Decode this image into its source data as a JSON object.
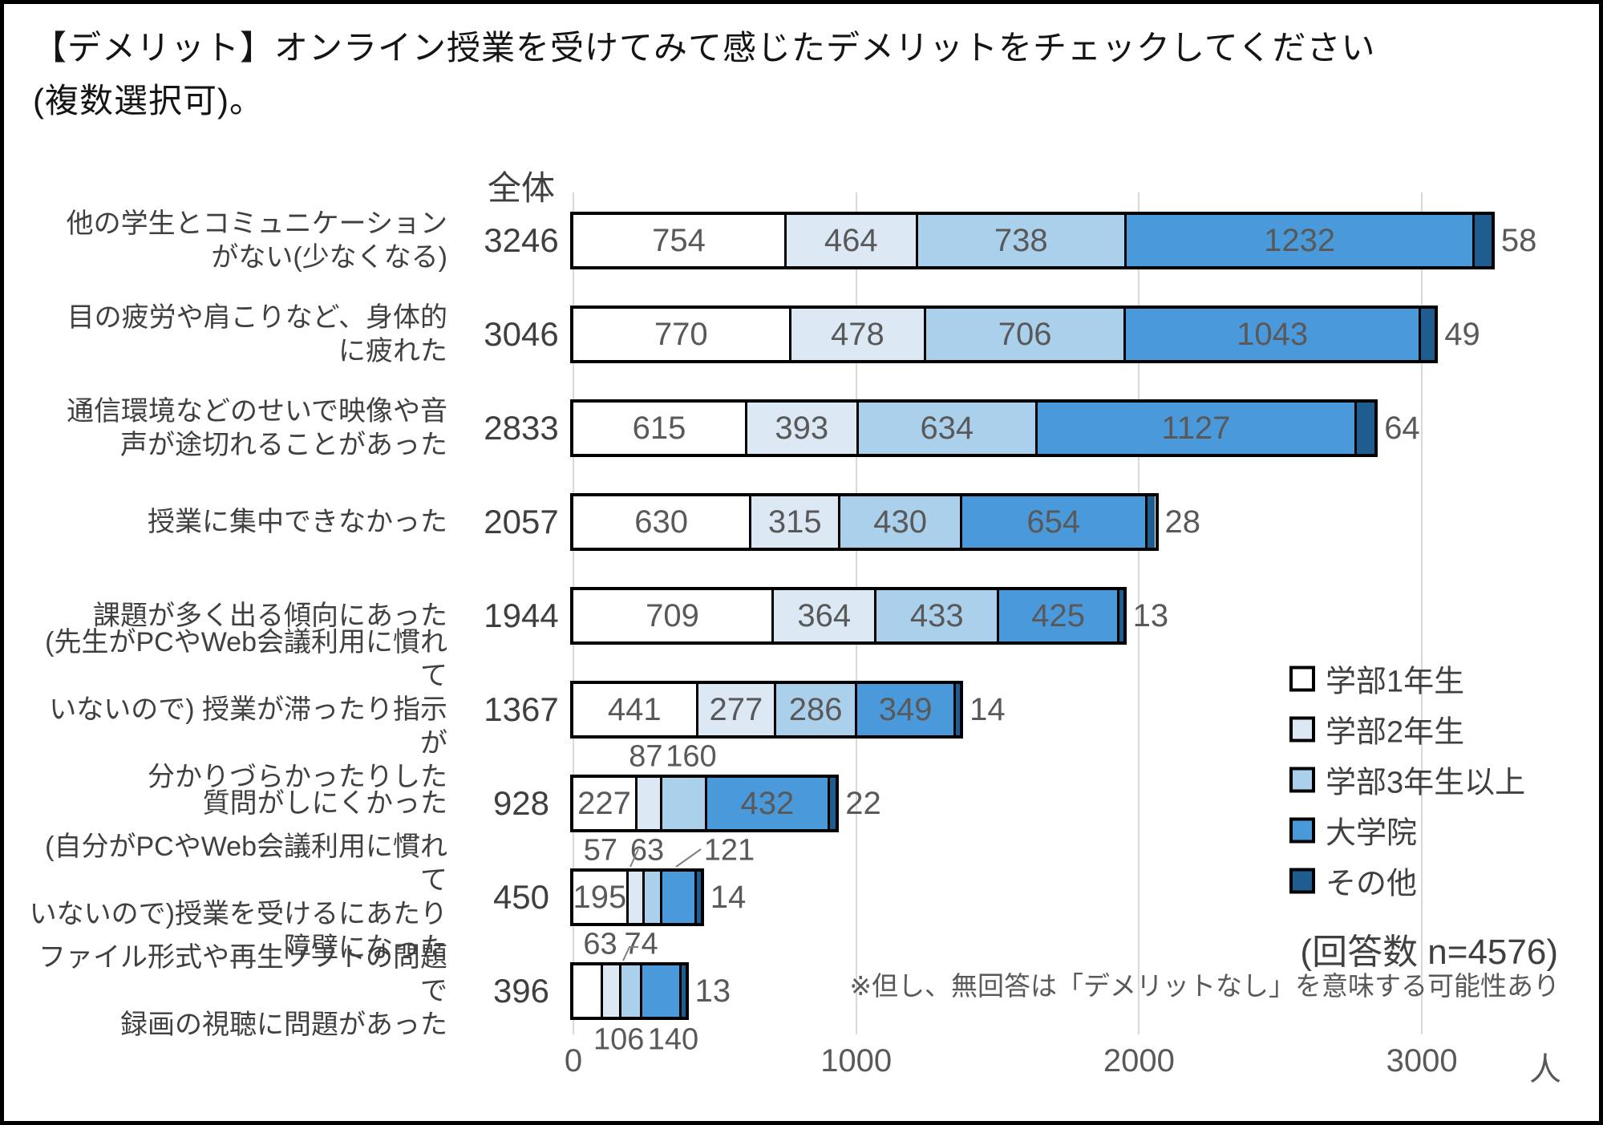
{
  "title": {
    "line1": "【デメリット】オンライン授業を受けてみて感じたデメリットをチェックしてください",
    "line2": "(複数選択可)。"
  },
  "chart_data": {
    "type": "bar",
    "stacked": true,
    "orientation": "horizontal",
    "grid": true,
    "legend_position": "right",
    "total_header": "全体",
    "unit": "人",
    "x_tick_labels": [
      "0",
      "1000",
      "2000",
      "3000"
    ],
    "x_tick_values": [
      0,
      1000,
      2000,
      3000
    ],
    "xlim": [
      0,
      3320
    ],
    "series_names": [
      "学部1年生",
      "学部2年生",
      "学部3年生以上",
      "大学院",
      "その他"
    ],
    "series_colors": [
      "#ffffff",
      "#dce9f5",
      "#abd0ec",
      "#4a99db",
      "#1f5c8f"
    ],
    "rows": [
      {
        "label_lines": [
          "他の学生とコミュニケーション",
          "がない(少なくなる)"
        ],
        "total": 3246,
        "values": [
          754,
          464,
          738,
          1232,
          58
        ]
      },
      {
        "label_lines": [
          "目の疲労や肩こりなど、身体的",
          "に疲れた"
        ],
        "total": 3046,
        "values": [
          770,
          478,
          706,
          1043,
          49
        ]
      },
      {
        "label_lines": [
          "通信環境などのせいで映像や音",
          "声が途切れることがあった"
        ],
        "total": 2833,
        "values": [
          615,
          393,
          634,
          1127,
          64
        ]
      },
      {
        "label_lines": [
          "授業に集中できなかった"
        ],
        "total": 2057,
        "values": [
          630,
          315,
          430,
          654,
          28
        ]
      },
      {
        "label_lines": [
          "課題が多く出る傾向にあった"
        ],
        "total": 1944,
        "values": [
          709,
          364,
          433,
          425,
          13
        ]
      },
      {
        "label_lines": [
          "(先生がPCやWeb会議利用に慣れて",
          "いないので) 授業が滞ったり指示が",
          "分かりづらかったりした"
        ],
        "total": 1367,
        "values": [
          441,
          277,
          286,
          349,
          14
        ]
      },
      {
        "label_lines": [
          "質問がしにくかった"
        ],
        "total": 928,
        "values": [
          227,
          87,
          160,
          432,
          22
        ],
        "outside": {
          "above": [
            1,
            2
          ]
        },
        "dx": {
          "1": -5,
          "2": 8
        }
      },
      {
        "label_lines": [
          "(自分がPCやWeb会議利用に慣れて",
          "いないので)授業を受けるにあたり",
          "障壁になった"
        ],
        "total": 450,
        "values": [
          195,
          57,
          63,
          121,
          14
        ],
        "outside": {
          "above": [
            1,
            2,
            3
          ]
        },
        "dx": {
          "1": -45,
          "2": -8,
          "3": 62
        }
      },
      {
        "label_lines": [
          "ファイル形式や再生ソフトの問題で",
          "録画の視聴に問題があった"
        ],
        "total": 396,
        "values": [
          106,
          63,
          74,
          140,
          13
        ],
        "outside": {
          "above": [
            1,
            2
          ],
          "below": [
            0,
            3
          ]
        },
        "dx": {
          "0": 38,
          "1": -15,
          "2": 12,
          "3": 14
        }
      }
    ],
    "response_count": "(回答数 n=4576)",
    "footnote": "※但し、無回答は「デメリットなし」を意味する可能性あり"
  }
}
